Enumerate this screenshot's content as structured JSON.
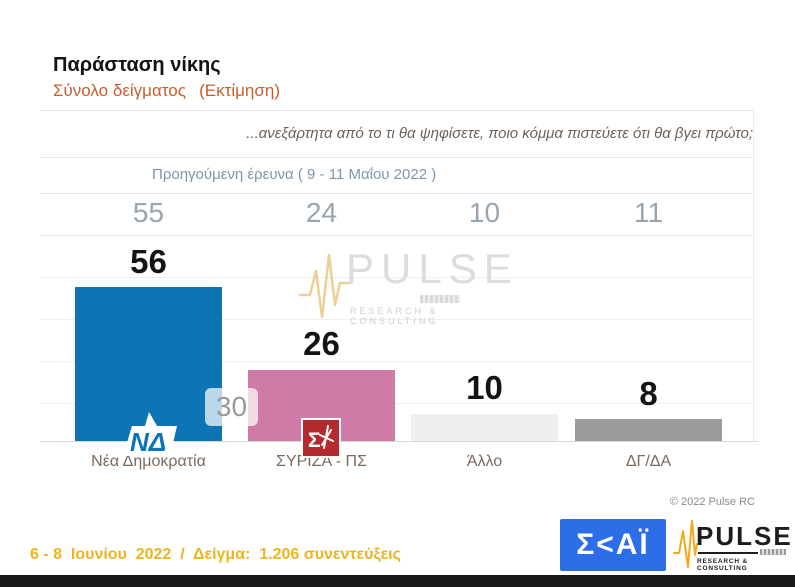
{
  "header": {
    "title": "Παράσταση νίκης",
    "subtitle": "Σύνολο δείγματος  (Εκτίμηση)",
    "question": "...ανεξάρτητα από το τι θα ψηφίσετε, ποιο κόμμα πιστεύετε ότι θα βγει πρώτο;"
  },
  "chart_data": {
    "type": "bar",
    "title": "Παράσταση νίκης",
    "subtitle": "Σύνολο δείγματος (Εκτίμηση)",
    "categories": [
      "Νέα Δημοκρατία",
      "ΣΥΡΙΖΑ - ΠΣ",
      "Άλλο",
      "ΔΓ/ΔΑ"
    ],
    "values": [
      56,
      26,
      10,
      8
    ],
    "bar_colors": [
      "#0d74b5",
      "#ce7ba7",
      "#efefef",
      "#9b9b9b"
    ],
    "previous_survey": {
      "label": "Προηγούμενη έρευνα ( 9 - 11 Μαΐου  2022 )",
      "values": [
        55,
        24,
        10,
        11
      ]
    },
    "annotation": "30",
    "ylim": [
      0,
      60
    ],
    "grid": true,
    "legend": "none",
    "value_label_style": "bold-black-above-bar"
  },
  "watermark": {
    "name": "PULSE",
    "tagline": "RESEARCH & CONSULTING"
  },
  "logos": {
    "nd_text": "ΝΔ",
    "syriza_text": "Σ",
    "skai_text": "Σ<ΑΪ",
    "pulse_text": "PULSE",
    "pulse_tagline": "RESEARCH & CONSULTING"
  },
  "footer": {
    "copyright": "© 2022 Pulse RC",
    "fieldwork": "6 - 8  Ιουνίου  2022  /  Δείγμα:  1.206 συνεντεύξεις"
  }
}
